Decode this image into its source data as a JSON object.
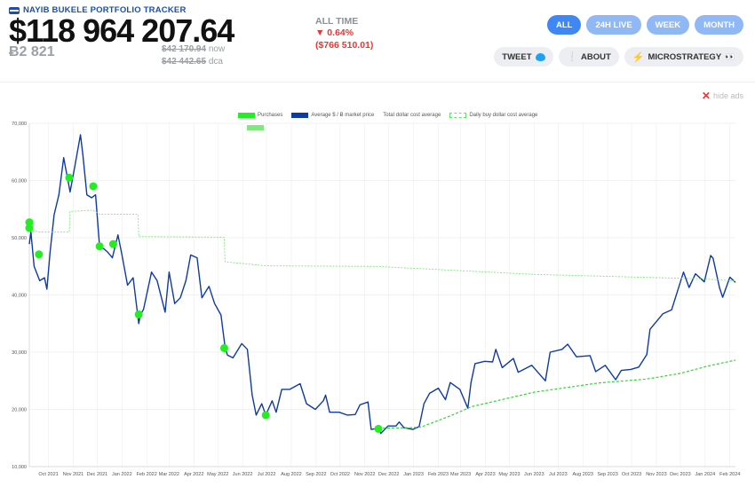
{
  "app": {
    "title": "NAYIB BUKELE PORTFOLIO TRACKER",
    "total_value": "$118 964 207.64",
    "btc_holdings": "Ƀ2 821",
    "now_price": "$42 170.94",
    "now_label": "now",
    "dca_price": "$42 442.65",
    "dca_label": "dca"
  },
  "alltime": {
    "label": "ALL TIME",
    "pct": "▼ 0.64%",
    "amount": "($766 510.01)"
  },
  "tabs": [
    {
      "label": "ALL",
      "active": true
    },
    {
      "label": "24H LIVE",
      "active": false
    },
    {
      "label": "WEEK",
      "active": false
    },
    {
      "label": "MONTH",
      "active": false
    }
  ],
  "actions": {
    "tweet": "TWEET",
    "about": "ABOUT",
    "microstrategy": "MICROSTRATEGY"
  },
  "icons": [
    "flag-icon",
    "twitter-icon",
    "info-icon",
    "bolt-icon",
    "eyes-icon",
    "close-icon"
  ],
  "hide_ads": "hide ads",
  "colors": {
    "accent": "#3f87f5",
    "negative": "#e53935",
    "price_line": "#0e3aa6",
    "purchase": "#22ee22",
    "dca_line": "#66e066"
  },
  "chart_data": {
    "type": "line",
    "legend": [
      "Purchases",
      "Average $ / Ƀ market price",
      "Total dollar cost average",
      "Daily buy dollar cost average"
    ],
    "legend_position": "top",
    "grid": true,
    "ylim": [
      10000,
      70000
    ],
    "yticks": [
      10000,
      20000,
      30000,
      40000,
      50000,
      60000,
      70000
    ],
    "ytick_labels": [
      "10,000",
      "20,000",
      "30,000",
      "40,000",
      "50,000",
      "60,000",
      "70,000"
    ],
    "xlim": [
      "2021-09-07",
      "2024-02-08"
    ],
    "xticks": [
      "2021-10-01",
      "2021-11-01",
      "2021-12-01",
      "2022-01-01",
      "2022-02-01",
      "2022-03-01",
      "2022-04-01",
      "2022-05-01",
      "2022-06-01",
      "2022-07-01",
      "2022-08-01",
      "2022-09-01",
      "2022-10-01",
      "2022-11-01",
      "2022-12-01",
      "2023-01-01",
      "2023-02-01",
      "2023-03-01",
      "2023-04-01",
      "2023-05-01",
      "2023-06-01",
      "2023-07-01",
      "2023-08-01",
      "2023-09-01",
      "2023-10-01",
      "2023-11-01",
      "2023-12-01",
      "2024-01-01",
      "2024-02-01"
    ],
    "xtick_labels": [
      "Oct 2021",
      "Nov 2021",
      "Dec 2021",
      "Jan 2022",
      "Feb 2022",
      "Mar 2022",
      "Apr 2022",
      "May 2022",
      "Jun 2022",
      "Jul 2022",
      "Aug 2022",
      "Sep 2022",
      "Oct 2022",
      "Nov 2022",
      "Dec 2022",
      "Jan 2023",
      "Feb 2023",
      "Mar 2023",
      "Apr 2023",
      "May 2023",
      "Jun 2023",
      "Jul 2023",
      "Aug 2023",
      "Sep 2023",
      "Oct 2023",
      "Nov 2023",
      "Dec 2023",
      "Jan 2024",
      "Feb 2024"
    ],
    "series": [
      {
        "name": "Average $ / Ƀ market price",
        "points": [
          [
            "2021-09-07",
            48900
          ],
          [
            "2021-09-09",
            51000
          ],
          [
            "2021-09-13",
            45000
          ],
          [
            "2021-09-20",
            42500
          ],
          [
            "2021-09-26",
            43000
          ],
          [
            "2021-09-29",
            41000
          ],
          [
            "2021-10-03",
            47500
          ],
          [
            "2021-10-08",
            54000
          ],
          [
            "2021-10-14",
            57500
          ],
          [
            "2021-10-20",
            64000
          ],
          [
            "2021-10-24",
            61000
          ],
          [
            "2021-10-28",
            58000
          ],
          [
            "2021-11-01",
            61000
          ],
          [
            "2021-11-10",
            68000
          ],
          [
            "2021-11-13",
            64500
          ],
          [
            "2021-11-18",
            57500
          ],
          [
            "2021-11-24",
            57000
          ],
          [
            "2021-11-29",
            57500
          ],
          [
            "2021-12-04",
            48500
          ],
          [
            "2021-12-10",
            48000
          ],
          [
            "2021-12-14",
            47500
          ],
          [
            "2021-12-20",
            46500
          ],
          [
            "2021-12-27",
            50500
          ],
          [
            "2022-01-01",
            47000
          ],
          [
            "2022-01-08",
            41700
          ],
          [
            "2022-01-15",
            43000
          ],
          [
            "2022-01-22",
            35000
          ],
          [
            "2022-01-24",
            36500
          ],
          [
            "2022-01-28",
            37500
          ],
          [
            "2022-02-07",
            44000
          ],
          [
            "2022-02-14",
            42500
          ],
          [
            "2022-02-24",
            37000
          ],
          [
            "2022-03-01",
            44000
          ],
          [
            "2022-03-08",
            38500
          ],
          [
            "2022-03-15",
            39500
          ],
          [
            "2022-03-22",
            42500
          ],
          [
            "2022-03-28",
            47000
          ],
          [
            "2022-04-05",
            46500
          ],
          [
            "2022-04-11",
            39500
          ],
          [
            "2022-04-20",
            41500
          ],
          [
            "2022-04-27",
            38500
          ],
          [
            "2022-05-05",
            36500
          ],
          [
            "2022-05-10",
            31000
          ],
          [
            "2022-05-13",
            29500
          ],
          [
            "2022-05-20",
            29000
          ],
          [
            "2022-05-31",
            31500
          ],
          [
            "2022-06-07",
            30500
          ],
          [
            "2022-06-13",
            22500
          ],
          [
            "2022-06-18",
            19000
          ],
          [
            "2022-06-25",
            21000
          ],
          [
            "2022-06-30",
            19000
          ],
          [
            "2022-07-08",
            21500
          ],
          [
            "2022-07-13",
            19500
          ],
          [
            "2022-07-20",
            23500
          ],
          [
            "2022-07-30",
            23500
          ],
          [
            "2022-08-12",
            24500
          ],
          [
            "2022-08-20",
            21000
          ],
          [
            "2022-08-31",
            20000
          ],
          [
            "2022-09-10",
            21500
          ],
          [
            "2022-09-13",
            22500
          ],
          [
            "2022-09-18",
            19500
          ],
          [
            "2022-09-30",
            19500
          ],
          [
            "2022-10-10",
            19000
          ],
          [
            "2022-10-20",
            19100
          ],
          [
            "2022-10-26",
            20800
          ],
          [
            "2022-11-05",
            21300
          ],
          [
            "2022-11-09",
            16500
          ],
          [
            "2022-11-18",
            16700
          ],
          [
            "2022-11-21",
            15800
          ],
          [
            "2022-11-30",
            17100
          ],
          [
            "2022-12-10",
            17100
          ],
          [
            "2022-12-14",
            17800
          ],
          [
            "2022-12-20",
            16800
          ],
          [
            "2022-12-31",
            16500
          ],
          [
            "2023-01-08",
            17000
          ],
          [
            "2023-01-14",
            21000
          ],
          [
            "2023-01-21",
            22800
          ],
          [
            "2023-02-01",
            23700
          ],
          [
            "2023-02-10",
            21700
          ],
          [
            "2023-02-16",
            24700
          ],
          [
            "2023-02-28",
            23500
          ],
          [
            "2023-03-10",
            20200
          ],
          [
            "2023-03-14",
            24700
          ],
          [
            "2023-03-19",
            28000
          ],
          [
            "2023-03-31",
            28400
          ],
          [
            "2023-04-10",
            28300
          ],
          [
            "2023-04-14",
            30500
          ],
          [
            "2023-04-22",
            27300
          ],
          [
            "2023-05-06",
            28900
          ],
          [
            "2023-05-12",
            26500
          ],
          [
            "2023-05-29",
            27700
          ],
          [
            "2023-06-15",
            25000
          ],
          [
            "2023-06-21",
            30000
          ],
          [
            "2023-07-06",
            30500
          ],
          [
            "2023-07-13",
            31400
          ],
          [
            "2023-07-24",
            29200
          ],
          [
            "2023-08-10",
            29400
          ],
          [
            "2023-08-17",
            26600
          ],
          [
            "2023-08-29",
            27700
          ],
          [
            "2023-09-11",
            25200
          ],
          [
            "2023-09-18",
            26800
          ],
          [
            "2023-09-30",
            27000
          ],
          [
            "2023-10-10",
            27400
          ],
          [
            "2023-10-20",
            29600
          ],
          [
            "2023-10-24",
            34000
          ],
          [
            "2023-11-09",
            36700
          ],
          [
            "2023-11-20",
            37400
          ],
          [
            "2023-12-05",
            44000
          ],
          [
            "2023-12-12",
            41300
          ],
          [
            "2023-12-20",
            43700
          ],
          [
            "2023-12-31",
            42300
          ],
          [
            "2024-01-08",
            46900
          ],
          [
            "2024-01-11",
            46400
          ],
          [
            "2024-01-19",
            41300
          ],
          [
            "2024-01-23",
            39600
          ],
          [
            "2024-02-01",
            43100
          ],
          [
            "2024-02-08",
            42200
          ]
        ]
      },
      {
        "name": "Total dollar cost average",
        "points": [
          [
            "2021-09-07",
            51300
          ],
          [
            "2021-09-20",
            51000
          ],
          [
            "2021-10-27",
            51000
          ],
          [
            "2021-10-28",
            54600
          ],
          [
            "2021-11-26",
            54800
          ],
          [
            "2021-12-04",
            54100
          ],
          [
            "2022-01-21",
            54100
          ],
          [
            "2022-01-22",
            50200
          ],
          [
            "2022-05-09",
            50100
          ],
          [
            "2022-05-10",
            45800
          ],
          [
            "2022-06-30",
            45100
          ],
          [
            "2022-11-15",
            45000
          ],
          [
            "2023-06-01",
            43600
          ],
          [
            "2023-12-31",
            42800
          ],
          [
            "2024-02-08",
            42442
          ]
        ]
      },
      {
        "name": "Daily buy dollar cost average",
        "points": [
          [
            "2022-11-18",
            16700
          ],
          [
            "2022-12-31",
            16800
          ],
          [
            "2023-01-10",
            16900
          ],
          [
            "2023-02-15",
            18800
          ],
          [
            "2023-03-15",
            20500
          ],
          [
            "2023-06-01",
            23000
          ],
          [
            "2023-08-20",
            24600
          ],
          [
            "2023-10-20",
            25300
          ],
          [
            "2023-12-01",
            26300
          ],
          [
            "2024-01-05",
            27600
          ],
          [
            "2024-02-08",
            28600
          ]
        ]
      }
    ],
    "purchases": [
      [
        "2021-09-07",
        52700
      ],
      [
        "2021-09-07",
        51700
      ],
      [
        "2021-09-19",
        47100
      ],
      [
        "2021-10-27",
        60500
      ],
      [
        "2021-11-26",
        59000
      ],
      [
        "2021-12-04",
        48500
      ],
      [
        "2021-12-21",
        48900
      ],
      [
        "2022-01-22",
        36600
      ],
      [
        "2022-05-09",
        30700
      ],
      [
        "2022-06-30",
        19000
      ],
      [
        "2022-11-18",
        16600
      ]
    ]
  }
}
